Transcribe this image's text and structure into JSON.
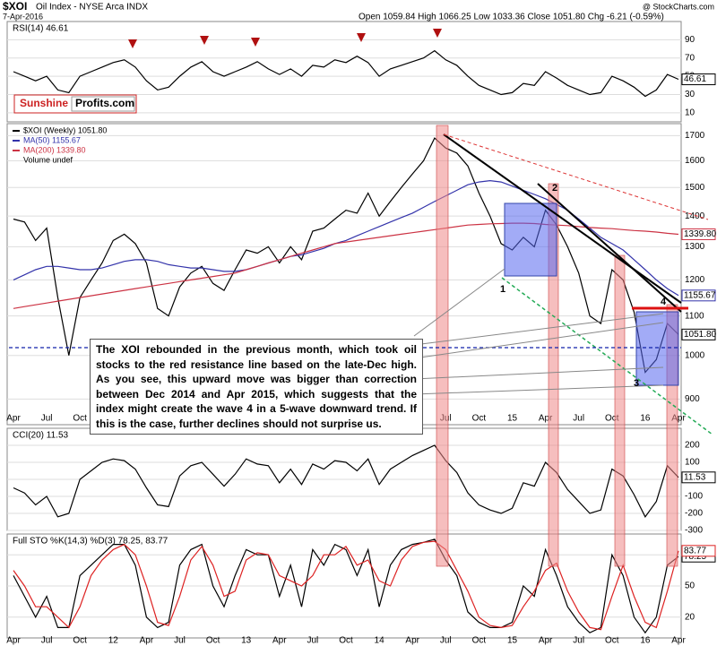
{
  "header": {
    "symbol": "$XOI",
    "name": "Oil Index - NYSE Arca INDX",
    "date": "7-Apr-2016",
    "quote": "Open 1059.84 High 1066.25 Low 1033.36 Close 1051.80 Chg -6.21 (-0.59%)",
    "credit": "@ StockCharts.com"
  },
  "logo": {
    "left": "Sunshine",
    "right": "Profits.com"
  },
  "annotation": "The XOI rebounded in the previous month, which took oil stocks to the red resistance line based on the late-Dec high. As you see, this upward move was bigger than correction between Dec 2014 and Apr 2015, which suggests that the index might create the wave 4 in a 5-wave downward trend. If this is the case, further declines should not surprise us.",
  "wave_labels": [
    "1",
    "2",
    "3",
    "4"
  ],
  "chart_data": [
    {
      "type": "line",
      "title": "RSI(14) 46.61",
      "color": "#000000",
      "ylim": [
        0,
        110
      ],
      "yticks": [
        10,
        30,
        50,
        70,
        90
      ],
      "grid": true,
      "values": [
        55,
        50,
        45,
        50,
        35,
        32,
        50,
        55,
        60,
        65,
        68,
        60,
        45,
        35,
        38,
        50,
        60,
        66,
        55,
        50,
        55,
        60,
        66,
        58,
        52,
        58,
        50,
        62,
        60,
        68,
        65,
        72,
        65,
        50,
        58,
        62,
        66,
        70,
        78,
        68,
        62,
        50,
        40,
        35,
        30,
        32,
        42,
        40,
        55,
        48,
        40,
        35,
        30,
        32,
        50,
        45,
        38,
        28,
        35,
        52,
        46.61
      ]
    },
    {
      "type": "line",
      "log_scale": true,
      "ylim": [
        846,
        1750
      ],
      "yticks": [
        900,
        1000,
        1100,
        1200,
        1300,
        1400,
        1500,
        1600,
        1700
      ],
      "grid": true,
      "categories": [
        "Apr",
        null,
        null,
        "Jul",
        null,
        null,
        "Oct",
        null,
        null,
        "12",
        null,
        null,
        "Apr",
        null,
        null,
        "Jul",
        null,
        null,
        "Oct",
        null,
        null,
        "13",
        null,
        null,
        "Apr",
        null,
        null,
        "Jul",
        null,
        null,
        "Oct",
        null,
        null,
        "14",
        null,
        null,
        "Apr",
        null,
        null,
        "Jul",
        null,
        null,
        "Oct",
        null,
        null,
        "15",
        null,
        null,
        "Apr",
        null,
        null,
        "Jul",
        null,
        null,
        "Oct",
        null,
        null,
        "16",
        null,
        null,
        "Apr"
      ],
      "series": [
        {
          "name": "$XOI (Weekly) 1051.80",
          "color": "#000000",
          "last_label": "1051.80",
          "values": [
            1390,
            1380,
            1320,
            1360,
            1150,
            1000,
            1150,
            1200,
            1250,
            1320,
            1340,
            1310,
            1250,
            1120,
            1100,
            1180,
            1220,
            1240,
            1190,
            1170,
            1230,
            1290,
            1280,
            1300,
            1250,
            1300,
            1260,
            1350,
            1360,
            1390,
            1420,
            1410,
            1480,
            1400,
            1450,
            1500,
            1550,
            1600,
            1690,
            1650,
            1630,
            1580,
            1480,
            1400,
            1310,
            1290,
            1330,
            1300,
            1420,
            1370,
            1300,
            1220,
            1100,
            1080,
            1230,
            1200,
            1110,
            960,
            990,
            1080,
            1051.8
          ]
        },
        {
          "name": "MA(50) 1155.67",
          "color": "#3333aa",
          "values": [
            1200,
            1215,
            1230,
            1240,
            1240,
            1235,
            1230,
            1230,
            1235,
            1245,
            1255,
            1260,
            1260,
            1255,
            1245,
            1240,
            1235,
            1235,
            1230,
            1225,
            1225,
            1230,
            1240,
            1250,
            1260,
            1270,
            1275,
            1285,
            1295,
            1310,
            1320,
            1335,
            1350,
            1365,
            1380,
            1395,
            1410,
            1430,
            1450,
            1470,
            1490,
            1510,
            1520,
            1525,
            1520,
            1505,
            1490,
            1475,
            1460,
            1440,
            1420,
            1390,
            1360,
            1330,
            1310,
            1290,
            1260,
            1230,
            1200,
            1175,
            1155.67
          ]
        },
        {
          "name": "MA(200) 1339.80",
          "color": "#cc3344",
          "last_label": "1339.80",
          "values": [
            1120,
            1125,
            1130,
            1135,
            1140,
            1145,
            1150,
            1155,
            1160,
            1165,
            1170,
            1175,
            1180,
            1185,
            1190,
            1195,
            1200,
            1205,
            1210,
            1215,
            1220,
            1230,
            1240,
            1250,
            1260,
            1270,
            1280,
            1290,
            1300,
            1310,
            1315,
            1320,
            1325,
            1330,
            1335,
            1340,
            1345,
            1350,
            1355,
            1360,
            1365,
            1370,
            1372,
            1374,
            1375,
            1376,
            1376,
            1375,
            1372,
            1370,
            1368,
            1365,
            1362,
            1360,
            1358,
            1355,
            1352,
            1350,
            1347,
            1343,
            1339.8
          ]
        }
      ],
      "extra_legend": "Volume undef"
    },
    {
      "type": "line",
      "title": "CCI(20) 11.53",
      "color": "#000000",
      "ylim": [
        -300,
        300
      ],
      "yticks": [
        -300,
        -200,
        -100,
        0,
        100,
        200
      ],
      "grid": true,
      "values": [
        -50,
        -80,
        -150,
        -100,
        -220,
        -200,
        0,
        50,
        100,
        120,
        110,
        60,
        -50,
        -150,
        -160,
        20,
        80,
        100,
        30,
        -40,
        30,
        120,
        90,
        80,
        -20,
        60,
        -30,
        90,
        60,
        110,
        100,
        50,
        120,
        -30,
        60,
        100,
        140,
        170,
        200,
        110,
        40,
        -80,
        -150,
        -180,
        -200,
        -170,
        -20,
        -40,
        100,
        40,
        -60,
        -130,
        -200,
        -180,
        60,
        20,
        -90,
        -220,
        -130,
        80,
        11.53
      ]
    },
    {
      "type": "line",
      "title": "Full STO %K(14,3) %D(3) 78.25, 83.77",
      "ylim": [
        0,
        100
      ],
      "yticks": [
        20,
        50,
        80
      ],
      "grid": true,
      "series": [
        {
          "color": "#000000",
          "values": [
            60,
            40,
            20,
            40,
            10,
            10,
            60,
            70,
            80,
            90,
            90,
            70,
            20,
            10,
            15,
            70,
            85,
            90,
            50,
            30,
            60,
            85,
            80,
            80,
            40,
            70,
            30,
            85,
            70,
            90,
            85,
            60,
            85,
            30,
            70,
            85,
            90,
            92,
            95,
            75,
            60,
            25,
            15,
            10,
            10,
            15,
            50,
            40,
            85,
            60,
            30,
            15,
            5,
            10,
            80,
            60,
            20,
            5,
            20,
            70,
            78.25
          ]
        },
        {
          "color": "#dd2222",
          "values": [
            65,
            50,
            30,
            30,
            20,
            10,
            30,
            60,
            75,
            85,
            90,
            80,
            50,
            15,
            12,
            40,
            75,
            88,
            70,
            40,
            45,
            75,
            82,
            80,
            60,
            55,
            50,
            60,
            80,
            80,
            88,
            70,
            75,
            55,
            50,
            75,
            88,
            92,
            93,
            85,
            65,
            45,
            20,
            12,
            10,
            12,
            30,
            45,
            65,
            72,
            45,
            25,
            10,
            8,
            40,
            70,
            40,
            15,
            10,
            45,
            83.77
          ]
        }
      ]
    }
  ]
}
